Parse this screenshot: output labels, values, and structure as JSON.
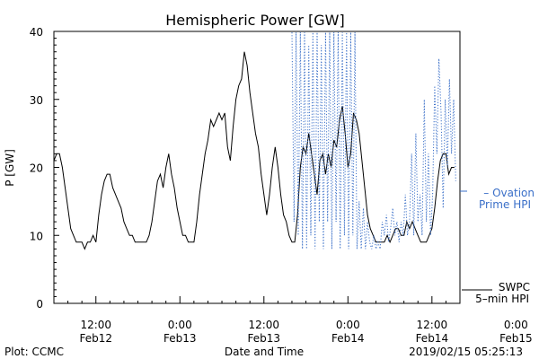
{
  "chart_data": {
    "type": "line",
    "title": "Hemispheric Power [GW]",
    "ylabel": "P [GW]",
    "xlabel": "Date and Time",
    "ylim": [
      0,
      40
    ],
    "yticks": [
      0,
      10,
      20,
      30,
      40
    ],
    "xlim": [
      -18,
      40
    ],
    "x_unit": "hours relative to 2019-02-13 00:00 UT",
    "xticks": [
      {
        "x": -12,
        "time": "12:00",
        "date": "Feb12"
      },
      {
        "x": 0,
        "time": "0:00",
        "date": "Feb13"
      },
      {
        "x": 12,
        "time": "12:00",
        "date": "Feb13"
      },
      {
        "x": 24,
        "time": "0:00",
        "date": "Feb14"
      },
      {
        "x": 36,
        "time": "12:00",
        "date": "Feb14"
      },
      {
        "x": 48,
        "time": "0:00",
        "date": "Feb15"
      }
    ],
    "series": [
      {
        "name": "SWPC 5-min HPI",
        "legend": [
          "SWPC",
          "5–min HPI"
        ],
        "color": "#000000",
        "style": "solid",
        "points": [
          [
            -18,
            21
          ],
          [
            -17.6,
            22
          ],
          [
            -17.2,
            22
          ],
          [
            -16.8,
            20
          ],
          [
            -16.4,
            17
          ],
          [
            -16,
            14
          ],
          [
            -15.6,
            11
          ],
          [
            -15.2,
            10
          ],
          [
            -14.8,
            9
          ],
          [
            -14.4,
            9
          ],
          [
            -14,
            9
          ],
          [
            -13.6,
            8
          ],
          [
            -13.2,
            9
          ],
          [
            -12.8,
            9
          ],
          [
            -12.4,
            10
          ],
          [
            -12,
            9
          ],
          [
            -11.6,
            13
          ],
          [
            -11.2,
            16
          ],
          [
            -10.8,
            18
          ],
          [
            -10.4,
            19
          ],
          [
            -10,
            19
          ],
          [
            -9.6,
            17
          ],
          [
            -9.2,
            16
          ],
          [
            -8.8,
            15
          ],
          [
            -8.4,
            14
          ],
          [
            -8,
            12
          ],
          [
            -7.6,
            11
          ],
          [
            -7.2,
            10
          ],
          [
            -6.8,
            10
          ],
          [
            -6.4,
            9
          ],
          [
            -6,
            9
          ],
          [
            -5.6,
            9
          ],
          [
            -5.2,
            9
          ],
          [
            -4.8,
            9
          ],
          [
            -4.4,
            10
          ],
          [
            -4,
            12
          ],
          [
            -3.6,
            15
          ],
          [
            -3.2,
            18
          ],
          [
            -2.8,
            19
          ],
          [
            -2.4,
            17
          ],
          [
            -2,
            20
          ],
          [
            -1.6,
            22
          ],
          [
            -1.2,
            19
          ],
          [
            -0.8,
            17
          ],
          [
            -0.4,
            14
          ],
          [
            0,
            12
          ],
          [
            0.4,
            10
          ],
          [
            0.8,
            10
          ],
          [
            1.2,
            9
          ],
          [
            1.6,
            9
          ],
          [
            2,
            9
          ],
          [
            2.4,
            12
          ],
          [
            2.8,
            16
          ],
          [
            3.2,
            19
          ],
          [
            3.6,
            22
          ],
          [
            4,
            24
          ],
          [
            4.4,
            27
          ],
          [
            4.8,
            26
          ],
          [
            5.2,
            27
          ],
          [
            5.6,
            28
          ],
          [
            6,
            27
          ],
          [
            6.4,
            28
          ],
          [
            6.8,
            23
          ],
          [
            7.2,
            21
          ],
          [
            7.6,
            26
          ],
          [
            8,
            30
          ],
          [
            8.4,
            32
          ],
          [
            8.8,
            33
          ],
          [
            9.2,
            37
          ],
          [
            9.6,
            35
          ],
          [
            10,
            31
          ],
          [
            10.4,
            28
          ],
          [
            10.8,
            25
          ],
          [
            11.2,
            23
          ],
          [
            11.6,
            19
          ],
          [
            12,
            16
          ],
          [
            12.4,
            13
          ],
          [
            12.8,
            16
          ],
          [
            13.2,
            20
          ],
          [
            13.6,
            23
          ],
          [
            14,
            20
          ],
          [
            14.4,
            16
          ],
          [
            14.8,
            13
          ],
          [
            15.2,
            12
          ],
          [
            15.6,
            10
          ],
          [
            16,
            9
          ],
          [
            16.4,
            9
          ],
          [
            16.8,
            13
          ],
          [
            17.2,
            20
          ],
          [
            17.6,
            23
          ],
          [
            18,
            22
          ],
          [
            18.4,
            25
          ],
          [
            18.8,
            22
          ],
          [
            19.2,
            19
          ],
          [
            19.6,
            16
          ],
          [
            20,
            21
          ],
          [
            20.4,
            22
          ],
          [
            20.8,
            19
          ],
          [
            21.2,
            22
          ],
          [
            21.6,
            20
          ],
          [
            22,
            24
          ],
          [
            22.4,
            23
          ],
          [
            22.8,
            27
          ],
          [
            23.2,
            29
          ],
          [
            23.6,
            25
          ],
          [
            24,
            20
          ],
          [
            24.4,
            22
          ],
          [
            24.8,
            28
          ],
          [
            25.2,
            27
          ],
          [
            25.6,
            25
          ],
          [
            26,
            21
          ],
          [
            26.4,
            17
          ],
          [
            26.8,
            13
          ],
          [
            27.2,
            11
          ],
          [
            27.6,
            10
          ],
          [
            28,
            9
          ],
          [
            28.4,
            9
          ],
          [
            28.8,
            9
          ],
          [
            29.2,
            9
          ],
          [
            29.6,
            10
          ],
          [
            30,
            9
          ],
          [
            30.4,
            10
          ],
          [
            30.8,
            11
          ],
          [
            31.2,
            11
          ],
          [
            31.6,
            10
          ],
          [
            32,
            10
          ],
          [
            32.4,
            12
          ],
          [
            32.8,
            11
          ],
          [
            33.2,
            12
          ],
          [
            33.6,
            11
          ],
          [
            34,
            10
          ],
          [
            34.4,
            9
          ],
          [
            34.8,
            9
          ],
          [
            35.2,
            9
          ],
          [
            35.6,
            10
          ],
          [
            36,
            11
          ],
          [
            36.4,
            14
          ],
          [
            36.8,
            18
          ],
          [
            37.2,
            21
          ],
          [
            37.6,
            22
          ],
          [
            38,
            22
          ],
          [
            38.4,
            19
          ],
          [
            38.8,
            20
          ],
          [
            39.2,
            20
          ]
        ]
      },
      {
        "name": "Ovation Prime HPI",
        "legend": [
          "– Ovation",
          "Prime HPI"
        ],
        "color": "#3a6fc8",
        "style": "dotted",
        "points": [
          [
            16,
            40
          ],
          [
            16.3,
            12
          ],
          [
            16.6,
            40
          ],
          [
            16.9,
            10
          ],
          [
            17.2,
            40
          ],
          [
            17.5,
            8
          ],
          [
            17.8,
            40
          ],
          [
            18.1,
            8
          ],
          [
            18.4,
            38
          ],
          [
            18.7,
            10
          ],
          [
            19,
            40
          ],
          [
            19.3,
            8
          ],
          [
            19.6,
            40
          ],
          [
            19.9,
            12
          ],
          [
            20.2,
            38
          ],
          [
            20.5,
            8
          ],
          [
            20.8,
            40
          ],
          [
            21.1,
            12
          ],
          [
            21.4,
            40
          ],
          [
            21.7,
            8
          ],
          [
            22,
            40
          ],
          [
            22.3,
            12
          ],
          [
            22.6,
            40
          ],
          [
            22.9,
            8
          ],
          [
            23.2,
            40
          ],
          [
            23.5,
            10
          ],
          [
            23.8,
            40
          ],
          [
            24.1,
            8
          ],
          [
            24.4,
            40
          ],
          [
            24.7,
            10
          ],
          [
            25,
            40
          ],
          [
            25.3,
            8
          ],
          [
            25.6,
            15
          ],
          [
            25.9,
            8
          ],
          [
            26.2,
            14
          ],
          [
            26.5,
            8
          ],
          [
            26.8,
            12
          ],
          [
            27.1,
            9
          ],
          [
            27.4,
            8
          ],
          [
            27.7,
            10
          ],
          [
            28,
            8
          ],
          [
            28.3,
            9
          ],
          [
            28.6,
            8
          ],
          [
            28.9,
            12
          ],
          [
            29.2,
            10
          ],
          [
            29.5,
            13
          ],
          [
            29.8,
            9
          ],
          [
            30.1,
            11
          ],
          [
            30.4,
            14
          ],
          [
            30.7,
            10
          ],
          [
            31,
            12
          ],
          [
            31.3,
            9
          ],
          [
            31.6,
            12
          ],
          [
            31.9,
            10
          ],
          [
            32.2,
            16
          ],
          [
            32.5,
            10
          ],
          [
            32.8,
            12
          ],
          [
            33.1,
            22
          ],
          [
            33.4,
            10
          ],
          [
            33.7,
            25
          ],
          [
            34,
            12
          ],
          [
            34.3,
            16
          ],
          [
            34.6,
            10
          ],
          [
            34.9,
            30
          ],
          [
            35.2,
            12
          ],
          [
            35.5,
            22
          ],
          [
            35.8,
            10
          ],
          [
            36.1,
            16
          ],
          [
            36.4,
            32
          ],
          [
            36.7,
            22
          ],
          [
            37,
            36
          ],
          [
            37.3,
            28
          ],
          [
            37.6,
            14
          ],
          [
            37.9,
            30
          ],
          [
            38.2,
            20
          ],
          [
            38.5,
            33
          ],
          [
            38.8,
            22
          ],
          [
            39.1,
            30
          ],
          [
            39.4,
            18
          ]
        ]
      }
    ]
  },
  "footer": {
    "left": "Plot: CCMC",
    "right": "2019/02/15 05:25:13"
  }
}
